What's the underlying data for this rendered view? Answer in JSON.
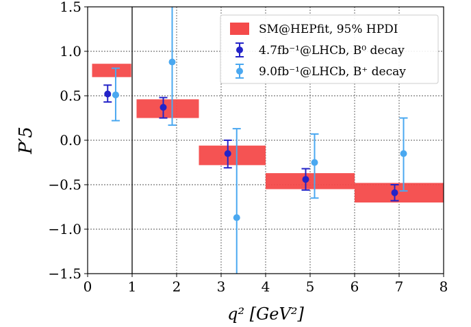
{
  "chart_data": {
    "type": "scatter",
    "title": "",
    "xlabel": "q² [GeV²]",
    "ylabel": "P′5",
    "xlim": [
      0,
      8
    ],
    "ylim": [
      -1.5,
      1.5
    ],
    "xticks": [
      "0",
      "1",
      "2",
      "3",
      "4",
      "5",
      "6",
      "7",
      "8"
    ],
    "yticks": [
      "−1.5",
      "−1.0",
      "−0.5",
      "0.0",
      "0.5",
      "1.0",
      "1.5"
    ],
    "grid": true,
    "legend_position": "top-right",
    "reference_line_x": 1,
    "series": [
      {
        "name": "SM@HEPfit, 95% HPDI",
        "kind": "band",
        "color": "#f44a4a",
        "bins": [
          {
            "x0": 0.1,
            "x1": 0.98,
            "ylo": 0.71,
            "yhi": 0.86
          },
          {
            "x0": 1.1,
            "x1": 2.5,
            "ylo": 0.25,
            "yhi": 0.46
          },
          {
            "x0": 2.5,
            "x1": 4.0,
            "ylo": -0.28,
            "yhi": -0.06
          },
          {
            "x0": 4.0,
            "x1": 6.0,
            "ylo": -0.55,
            "yhi": -0.37
          },
          {
            "x0": 6.0,
            "x1": 8.0,
            "ylo": -0.7,
            "yhi": -0.48
          }
        ]
      },
      {
        "name": "4.7fb⁻¹@LHCb, B⁰ decay",
        "kind": "errorbar",
        "color": "#2323c8",
        "points": [
          {
            "x": 0.45,
            "y": 0.52,
            "ylo": 0.43,
            "yhi": 0.62
          },
          {
            "x": 1.7,
            "y": 0.37,
            "ylo": 0.25,
            "yhi": 0.48
          },
          {
            "x": 3.15,
            "y": -0.15,
            "ylo": -0.31,
            "yhi": 0.0
          },
          {
            "x": 4.9,
            "y": -0.44,
            "ylo": -0.56,
            "yhi": -0.32
          },
          {
            "x": 6.9,
            "y": -0.59,
            "ylo": -0.68,
            "yhi": -0.5
          }
        ]
      },
      {
        "name": "9.0fb⁻¹@LHCb, B⁺ decay",
        "kind": "errorbar",
        "color": "#4aa8f0",
        "points": [
          {
            "x": 0.63,
            "y": 0.51,
            "ylo": 0.22,
            "yhi": 0.81
          },
          {
            "x": 1.9,
            "y": 0.88,
            "ylo": 0.17,
            "yhi": 1.6
          },
          {
            "x": 3.35,
            "y": -0.87,
            "ylo": -1.6,
            "yhi": 0.13
          },
          {
            "x": 5.1,
            "y": -0.25,
            "ylo": -0.65,
            "yhi": 0.07
          },
          {
            "x": 7.1,
            "y": -0.15,
            "ylo": -0.57,
            "yhi": 0.25
          }
        ]
      }
    ]
  }
}
